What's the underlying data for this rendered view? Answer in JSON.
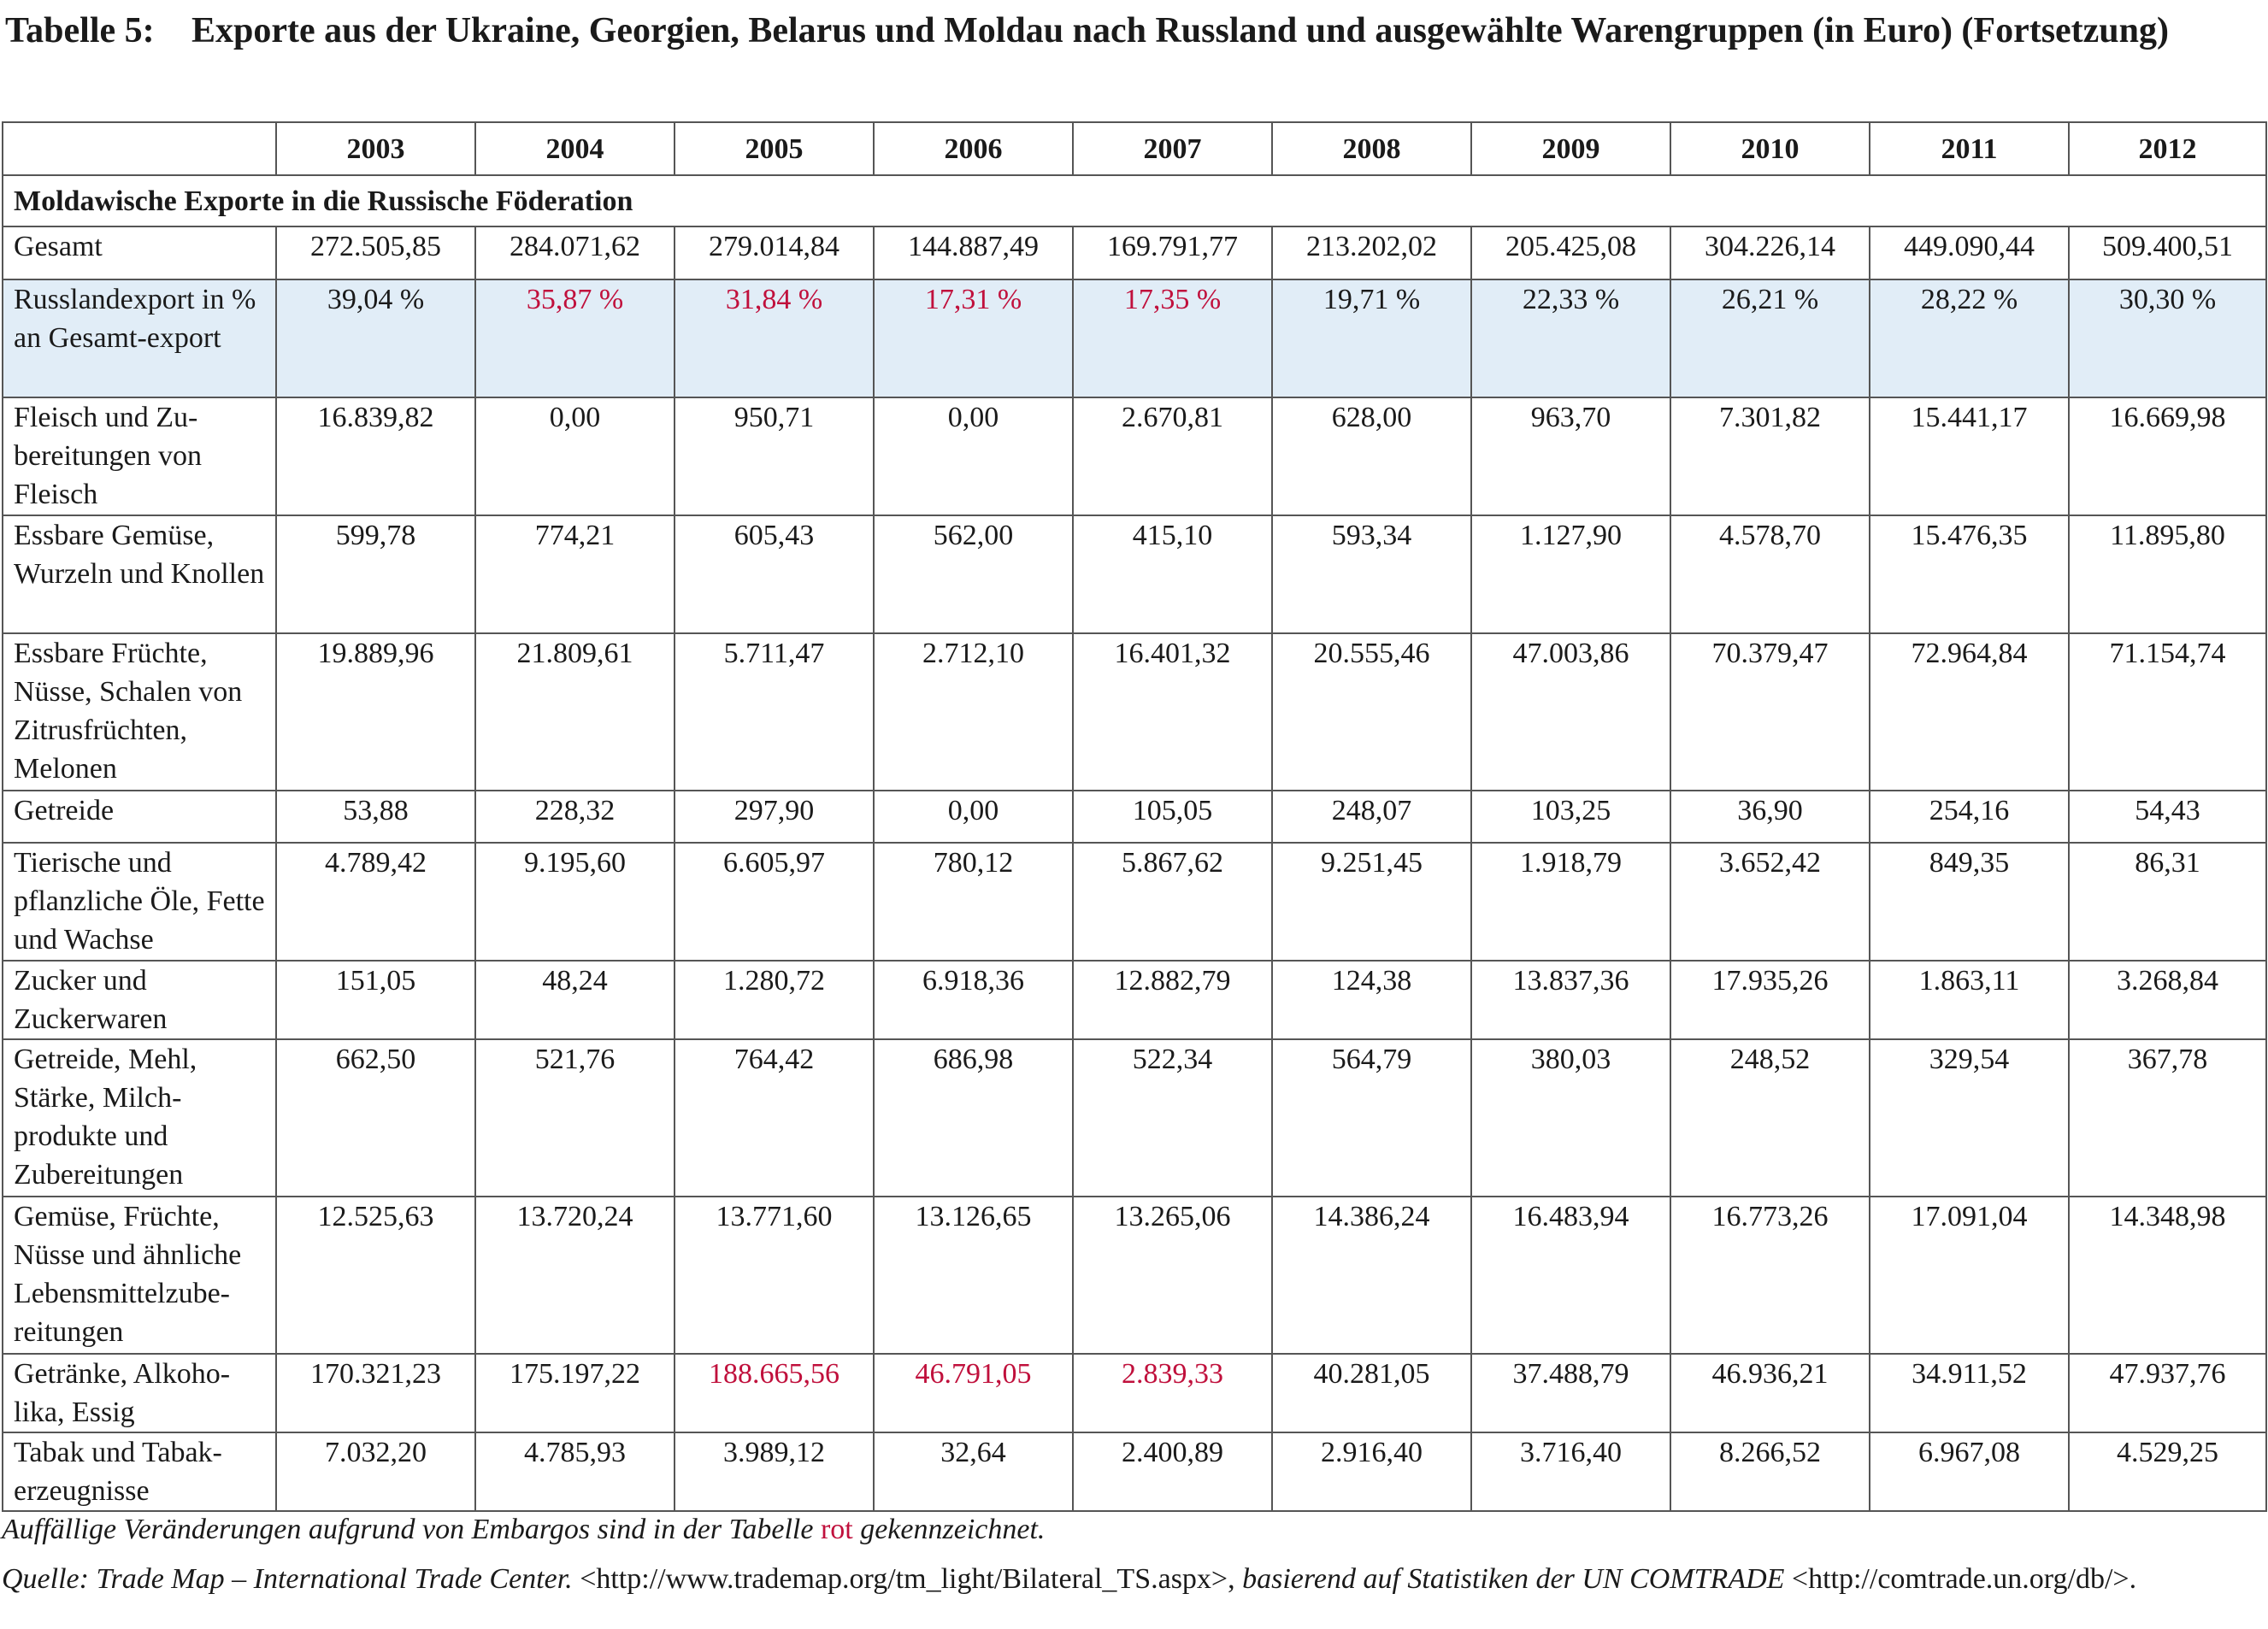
{
  "title": {
    "label": "Tabelle 5:",
    "text": "Exporte aus der Ukraine, Georgien, Belarus und Moldau nach Russland und ausgewählte Warengruppen (in Euro) (Fortsetzung)"
  },
  "table": {
    "corner": "",
    "years": [
      "2003",
      "2004",
      "2005",
      "2006",
      "2007",
      "2008",
      "2009",
      "2010",
      "2011",
      "2012"
    ],
    "section": "Moldawische Exporte in die Russische Föderation",
    "rows": [
      {
        "label": "Gesamt",
        "height": 62,
        "values": [
          "272.505,85",
          "284.071,62",
          "279.014,84",
          "144.887,49",
          "169.791,77",
          "213.202,02",
          "205.425,08",
          "304.226,14",
          "449.090,44",
          "509.400,51"
        ],
        "red": []
      },
      {
        "label": "Russlandexport in % an Gesamt-export",
        "height": 138,
        "share": true,
        "values": [
          "39,04 %",
          "35,87 %",
          "31,84 %",
          "17,31 %",
          "17,35 %",
          "19,71 %",
          "22,33 %",
          "26,21 %",
          "28,22 %",
          "30,30 %"
        ],
        "red": [
          1,
          2,
          3,
          4
        ]
      },
      {
        "label": "Fleisch und Zu-bereitungen von Fleisch",
        "height": 138,
        "values": [
          "16.839,82",
          "0,00",
          "950,71",
          "0,00",
          "2.670,81",
          "628,00",
          "963,70",
          "7.301,82",
          "15.441,17",
          "16.669,98"
        ],
        "red": []
      },
      {
        "label": "Essbare Gemüse, Wurzeln und Knollen",
        "height": 138,
        "values": [
          "599,78",
          "774,21",
          "605,43",
          "562,00",
          "415,10",
          "593,34",
          "1.127,90",
          "4.578,70",
          "15.476,35",
          "11.895,80"
        ],
        "red": []
      },
      {
        "label": "Essbare Früchte, Nüsse, Schalen von Zitrusfrüchten, Melonen",
        "height": 184,
        "values": [
          "19.889,96",
          "21.809,61",
          "5.711,47",
          "2.712,10",
          "16.401,32",
          "20.555,46",
          "47.003,86",
          "70.379,47",
          "72.964,84",
          "71.154,74"
        ],
        "red": []
      },
      {
        "label": "Getreide",
        "height": 61,
        "values": [
          "53,88",
          "228,32",
          "297,90",
          "0,00",
          "105,05",
          "248,07",
          "103,25",
          "36,90",
          "254,16",
          "54,43"
        ],
        "red": []
      },
      {
        "label": "Tierische und pflanzliche Öle, Fette und Wachse",
        "height": 138,
        "values": [
          "4.789,42",
          "9.195,60",
          "6.605,97",
          "780,12",
          "5.867,62",
          "9.251,45",
          "1.918,79",
          "3.652,42",
          "849,35",
          "86,31"
        ],
        "red": []
      },
      {
        "label": "Zucker und Zuckerwaren",
        "height": 92,
        "values": [
          "151,05",
          "48,24",
          "1.280,72",
          "6.918,36",
          "12.882,79",
          "124,38",
          "13.837,36",
          "17.935,26",
          "1.863,11",
          "3.268,84"
        ],
        "red": []
      },
      {
        "label": "Getreide, Mehl, Stärke, Milch-produkte und Zubereitungen",
        "height": 184,
        "values": [
          "662,50",
          "521,76",
          "764,42",
          "686,98",
          "522,34",
          "564,79",
          "380,03",
          "248,52",
          "329,54",
          "367,78"
        ],
        "red": []
      },
      {
        "label": "Gemüse, Früchte, Nüsse und ähnliche Lebensmittelzube-reitungen",
        "height": 184,
        "values": [
          "12.525,63",
          "13.720,24",
          "13.771,60",
          "13.126,65",
          "13.265,06",
          "14.386,24",
          "16.483,94",
          "16.773,26",
          "17.091,04",
          "14.348,98"
        ],
        "red": []
      },
      {
        "label": "Getränke, Alkoho-lika, Essig",
        "height": 92,
        "values": [
          "170.321,23",
          "175.197,22",
          "188.665,56",
          "46.791,05",
          "2.839,33",
          "40.281,05",
          "37.488,79",
          "46.936,21",
          "34.911,52",
          "47.937,76"
        ],
        "red": [
          2,
          3,
          4
        ]
      },
      {
        "label": "Tabak und Tabak-erzeugnisse",
        "height": 92,
        "values": [
          "7.032,20",
          "4.785,93",
          "3.989,12",
          "32,64",
          "2.400,89",
          "2.916,40",
          "3.716,40",
          "8.266,52",
          "6.967,08",
          "4.529,25"
        ],
        "red": []
      }
    ]
  },
  "notes": {
    "embargo_before": "Auffällige Veränderungen aufgrund von Embargos sind in der Tabelle ",
    "embargo_red": "rot",
    "embargo_after": " gekennzeichnet.",
    "source_1": "Quelle: Trade Map – International Trade Center.",
    "source_2": " <http://www.trademap.org/tm_light/Bilateral_TS.aspx>, ",
    "source_3": "basierend auf Statistiken der UN COMTRADE",
    "source_4": " <http://comtrade.un.org/db/>."
  },
  "colors": {
    "highlight_red": "#c0103c",
    "share_row_bg": "#e1edf7",
    "grid": "#555555"
  }
}
